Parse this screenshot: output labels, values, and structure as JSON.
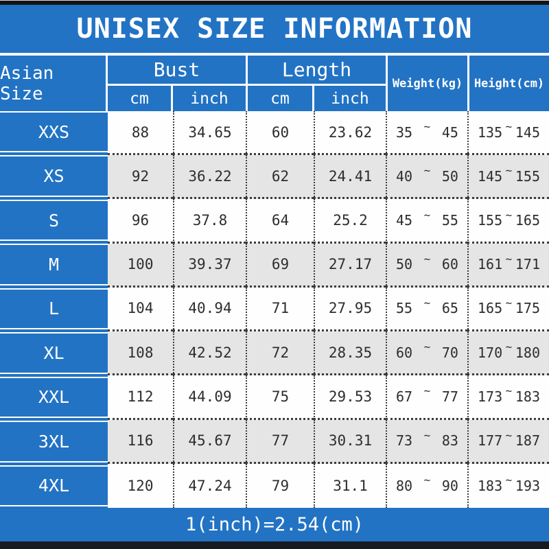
{
  "title": "UNISEX SIZE INFORMATION",
  "colors": {
    "accent_blue": "#2273c4",
    "row_white": "#fefefe",
    "row_gray": "#e5e5e5",
    "text_dark": "#2d2d2d",
    "border_white": "#ffffff",
    "bar_black": "#141414"
  },
  "table": {
    "row_header_label": "Asian Size",
    "tilde": "~",
    "groups": [
      {
        "label": "Bust",
        "subs": [
          "cm",
          "inch"
        ]
      },
      {
        "label": "Length",
        "subs": [
          "cm",
          "inch"
        ]
      }
    ],
    "single_headers": [
      "Weight(kg)",
      "Height(cm)"
    ],
    "rows": [
      {
        "size": "XXS",
        "bust_cm": "88",
        "bust_inch": "34.65",
        "len_cm": "60",
        "len_inch": "23.62",
        "w_min": "35",
        "w_max": "45",
        "h_min": "135",
        "h_max": "145"
      },
      {
        "size": "XS",
        "bust_cm": "92",
        "bust_inch": "36.22",
        "len_cm": "62",
        "len_inch": "24.41",
        "w_min": "40",
        "w_max": "50",
        "h_min": "145",
        "h_max": "155"
      },
      {
        "size": "S",
        "bust_cm": "96",
        "bust_inch": "37.8",
        "len_cm": "64",
        "len_inch": "25.2",
        "w_min": "45",
        "w_max": "55",
        "h_min": "155",
        "h_max": "165"
      },
      {
        "size": "M",
        "bust_cm": "100",
        "bust_inch": "39.37",
        "len_cm": "69",
        "len_inch": "27.17",
        "w_min": "50",
        "w_max": "60",
        "h_min": "161",
        "h_max": "171"
      },
      {
        "size": "L",
        "bust_cm": "104",
        "bust_inch": "40.94",
        "len_cm": "71",
        "len_inch": "27.95",
        "w_min": "55",
        "w_max": "65",
        "h_min": "165",
        "h_max": "175"
      },
      {
        "size": "XL",
        "bust_cm": "108",
        "bust_inch": "42.52",
        "len_cm": "72",
        "len_inch": "28.35",
        "w_min": "60",
        "w_max": "70",
        "h_min": "170",
        "h_max": "180"
      },
      {
        "size": "XXL",
        "bust_cm": "112",
        "bust_inch": "44.09",
        "len_cm": "75",
        "len_inch": "29.53",
        "w_min": "67",
        "w_max": "77",
        "h_min": "173",
        "h_max": "183"
      },
      {
        "size": "3XL",
        "bust_cm": "116",
        "bust_inch": "45.67",
        "len_cm": "77",
        "len_inch": "30.31",
        "w_min": "73",
        "w_max": "83",
        "h_min": "177",
        "h_max": "187"
      },
      {
        "size": "4XL",
        "bust_cm": "120",
        "bust_inch": "47.24",
        "len_cm": "79",
        "len_inch": "31.1",
        "w_min": "80",
        "w_max": "90",
        "h_min": "183",
        "h_max": "193"
      }
    ]
  },
  "footer": {
    "note": "1(inch)=2.54(cm)"
  }
}
